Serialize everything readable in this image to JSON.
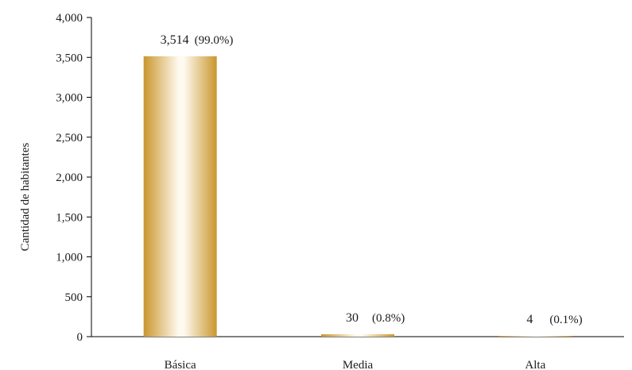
{
  "chart_data": {
    "type": "bar",
    "categories": [
      "Básica",
      "Media",
      "Alta"
    ],
    "values": [
      3514,
      30,
      4
    ],
    "value_labels": [
      "3,514",
      "30",
      "4"
    ],
    "percent_labels": [
      "(99.0%)",
      "(0.8%)",
      "(0.1%)"
    ],
    "title": "",
    "xlabel": "",
    "ylabel": "Cantidad de habitantes",
    "ylim": [
      0,
      4000
    ],
    "yticks": [
      0,
      500,
      1000,
      1500,
      2000,
      2500,
      3000,
      3500,
      4000
    ],
    "ytick_labels": [
      "0",
      "500",
      "1,000",
      "1,500",
      "2,000",
      "2,500",
      "3,000",
      "3,500",
      "4,000"
    ],
    "grid": false,
    "legend": "none",
    "colors": {
      "bar_edge": "#c9962e",
      "bar_center": "#fffaf0"
    }
  }
}
